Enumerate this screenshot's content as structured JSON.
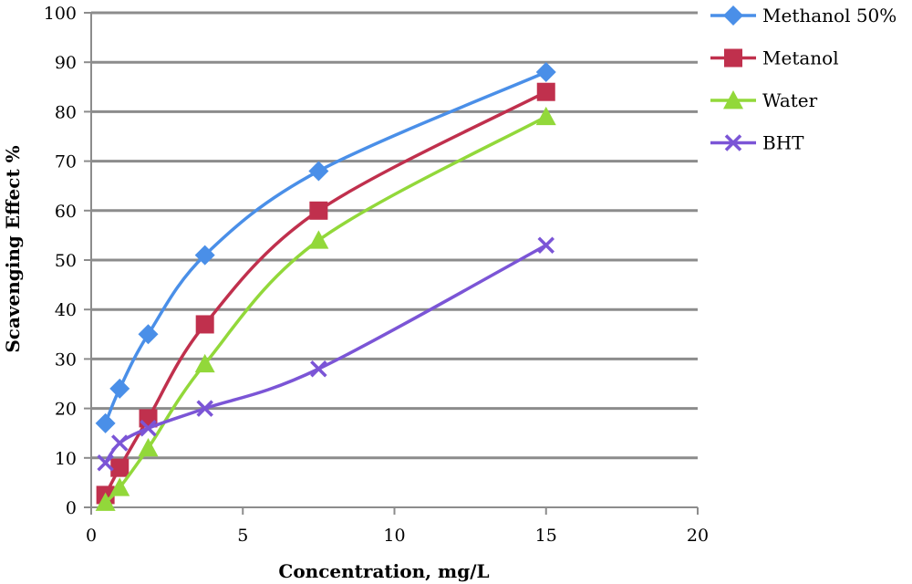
{
  "chart_data": {
    "type": "scatter",
    "title": "",
    "xlabel": "Concentration, mg/L",
    "ylabel": "Scavenging Effect %",
    "xlim": [
      0,
      20
    ],
    "ylim": [
      0,
      100
    ],
    "x_ticks": [
      0,
      5,
      10,
      15,
      20
    ],
    "y_ticks": [
      0,
      10,
      20,
      30,
      40,
      50,
      60,
      70,
      80,
      90,
      100
    ],
    "grid": "horizontal",
    "legend_position": "right",
    "series": [
      {
        "name": "Methanol 50%",
        "color": "#4A8FE8",
        "marker": "diamond",
        "x": [
          0.47,
          0.94,
          1.88,
          3.75,
          7.5,
          15
        ],
        "y": [
          17,
          24,
          35,
          51,
          68,
          88
        ]
      },
      {
        "name": "Metanol",
        "color": "#C0304D",
        "marker": "square",
        "x": [
          0.47,
          0.94,
          1.88,
          3.75,
          7.5,
          15
        ],
        "y": [
          2.5,
          8,
          18,
          37,
          60,
          84
        ]
      },
      {
        "name": "Water",
        "color": "#92D83A",
        "marker": "triangle",
        "x": [
          0.47,
          0.94,
          1.88,
          3.75,
          7.5,
          15
        ],
        "y": [
          1,
          4,
          12,
          29,
          54,
          79
        ]
      },
      {
        "name": "BHT",
        "color": "#7B55D6",
        "marker": "x",
        "x": [
          0.47,
          0.94,
          1.88,
          3.75,
          7.5,
          15
        ],
        "y": [
          9,
          13,
          16,
          20,
          28,
          53
        ]
      }
    ]
  }
}
